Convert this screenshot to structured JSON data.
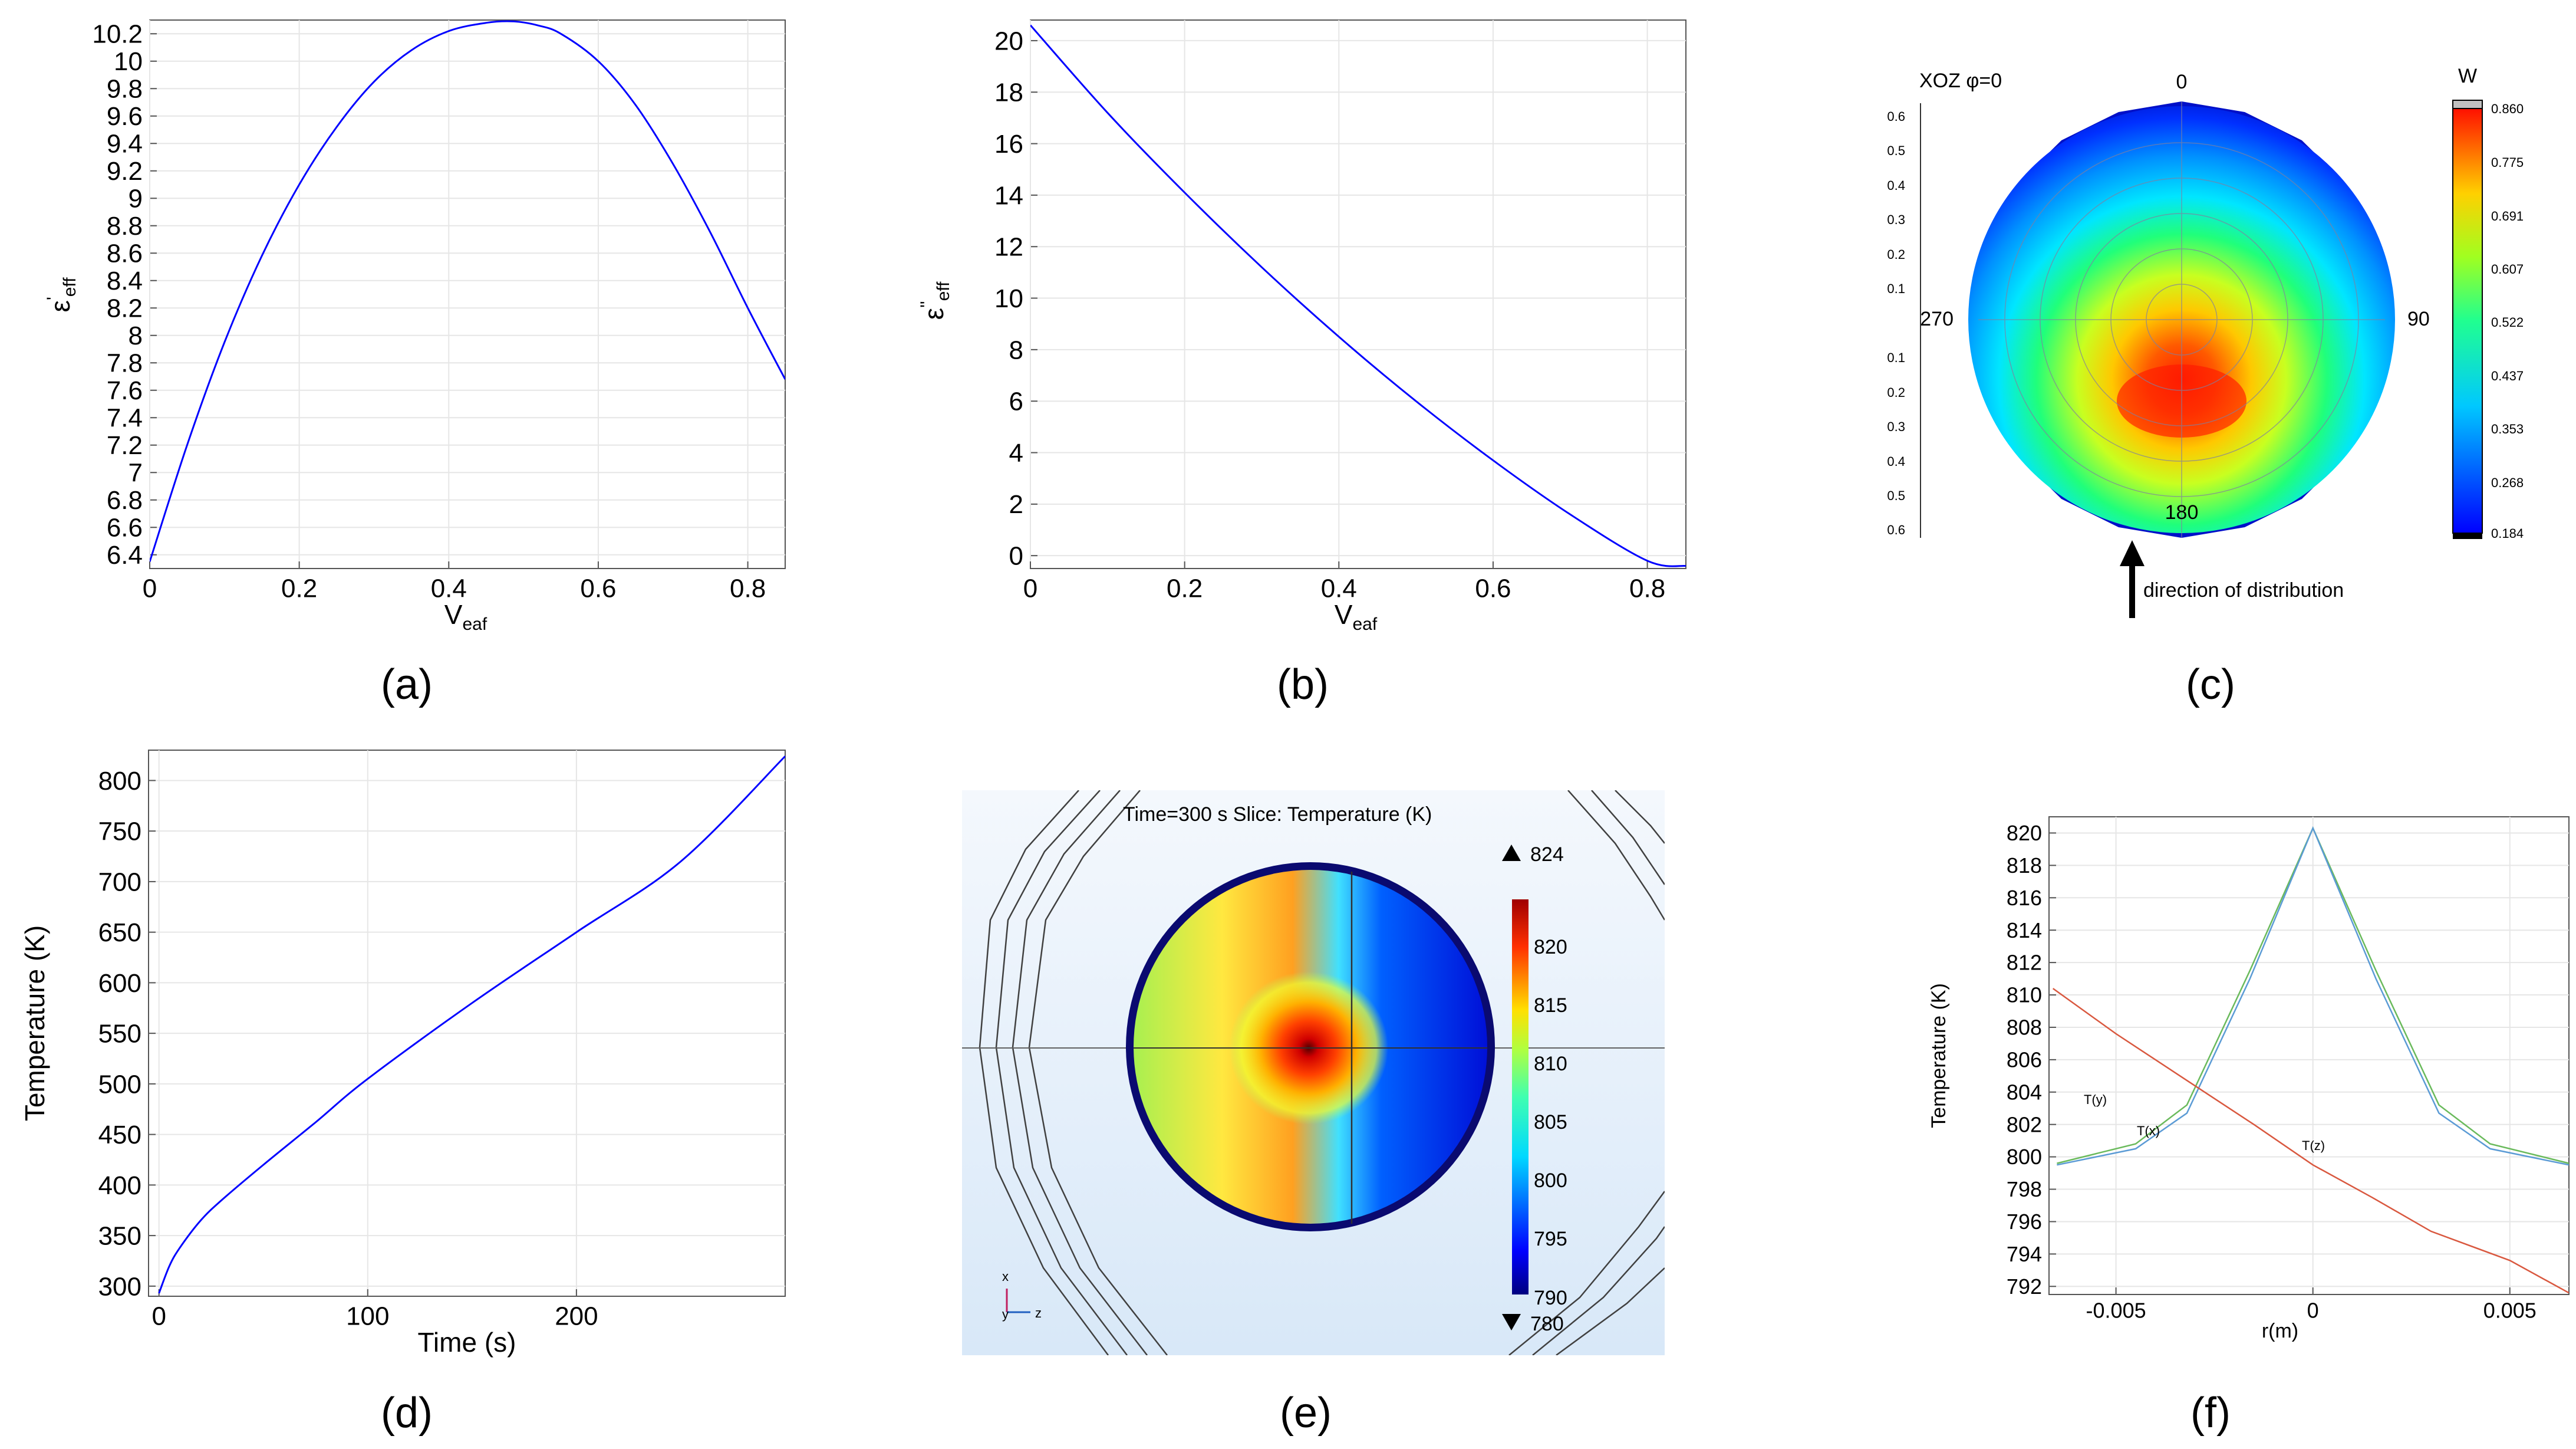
{
  "captions": [
    "(a)",
    "(b)",
    "(c)",
    "(d)",
    "(e)",
    "(f)"
  ],
  "chart_data": [
    {
      "id": "a",
      "type": "line",
      "xlabel": "V",
      "xlabel_sub": "eaf",
      "ylabel": "ε",
      "ylabel_sup": "'",
      "ylabel_sub": "eff",
      "xlim": [
        0,
        0.85
      ],
      "ylim": [
        6.3,
        10.3
      ],
      "xticks": [
        0,
        0.2,
        0.4,
        0.6,
        0.8
      ],
      "xtick_labels": [
        "0",
        "0.2",
        "0.4",
        "0.6",
        "0.8"
      ],
      "yticks": [
        6.4,
        6.6,
        6.8,
        7,
        7.2,
        7.4,
        7.6,
        7.8,
        8,
        8.2,
        8.4,
        8.6,
        8.8,
        9,
        9.2,
        9.4,
        9.6,
        9.8,
        10,
        10.2
      ],
      "ytick_labels": [
        "6.4",
        "6.6",
        "6.8",
        "7",
        "7.2",
        "7.4",
        "7.6",
        "7.8",
        "8",
        "8.2",
        "8.4",
        "8.6",
        "8.8",
        "9",
        "9.2",
        "9.4",
        "9.6",
        "9.8",
        "10",
        "10.2"
      ],
      "series": [
        {
          "name": "ε'eff",
          "color": "#0000ff",
          "x": [
            0,
            0.05,
            0.1,
            0.15,
            0.2,
            0.25,
            0.3,
            0.35,
            0.4,
            0.45,
            0.487,
            0.52,
            0.55,
            0.6,
            0.65,
            0.7,
            0.75,
            0.8,
            0.85
          ],
          "y": [
            6.35,
            7.2,
            7.95,
            8.58,
            9.1,
            9.52,
            9.85,
            10.08,
            10.22,
            10.28,
            10.29,
            10.26,
            10.2,
            10.0,
            9.68,
            9.25,
            8.75,
            8.2,
            7.68
          ]
        }
      ]
    },
    {
      "id": "b",
      "type": "line",
      "xlabel": "V",
      "xlabel_sub": "eaf",
      "ylabel": "ε",
      "ylabel_sup": "''",
      "ylabel_sub": "eff",
      "xlim": [
        0,
        0.85
      ],
      "ylim": [
        -0.5,
        20.8
      ],
      "xticks": [
        0,
        0.2,
        0.4,
        0.6,
        0.8
      ],
      "xtick_labels": [
        "0",
        "0.2",
        "0.4",
        "0.6",
        "0.8"
      ],
      "yticks": [
        0,
        2,
        4,
        6,
        8,
        10,
        12,
        14,
        16,
        18,
        20
      ],
      "ytick_labels": [
        "0",
        "2",
        "4",
        "6",
        "8",
        "10",
        "12",
        "14",
        "16",
        "18",
        "20"
      ],
      "series": [
        {
          "name": "ε''eff",
          "color": "#0000ff",
          "x": [
            0,
            0.1,
            0.2,
            0.3,
            0.4,
            0.5,
            0.6,
            0.7,
            0.8,
            0.85
          ],
          "y": [
            20.6,
            17.2,
            14.1,
            11.2,
            8.5,
            6.0,
            3.7,
            1.6,
            -0.2,
            -0.4
          ]
        }
      ]
    },
    {
      "id": "c",
      "type": "heatmap",
      "plot_label": "XOZ φ=0",
      "angle_labels": [
        "0",
        "90",
        "180",
        "270"
      ],
      "radial_ticks_top": [
        "0.6",
        "0.5",
        "0.4",
        "0.3",
        "0.2",
        "0.1"
      ],
      "radial_ticks_bottom": [
        "0.1",
        "0.2",
        "0.3",
        "0.4",
        "0.5",
        "0.6"
      ],
      "colorbar_title": "W",
      "colorbar_ticks": [
        "0.860",
        "0.775",
        "0.691",
        "0.607",
        "0.522",
        "0.437",
        "0.353",
        "0.268",
        "0.184"
      ],
      "annotation": "direction of distribution"
    },
    {
      "id": "d",
      "type": "line",
      "xlabel": "Time (s)",
      "ylabel": "Temperature (K)",
      "xlim": [
        -5,
        300
      ],
      "ylim": [
        290,
        830
      ],
      "xticks": [
        0,
        100,
        200
      ],
      "xtick_labels": [
        "0",
        "100",
        "200"
      ],
      "yticks": [
        300,
        350,
        400,
        450,
        500,
        550,
        600,
        650,
        700,
        750,
        800
      ],
      "ytick_labels": [
        "300",
        "350",
        "400",
        "450",
        "500",
        "550",
        "600",
        "650",
        "700",
        "750",
        "800"
      ],
      "series": [
        {
          "name": "Temperature",
          "color": "#0000ff",
          "x": [
            0,
            5,
            10,
            20,
            30,
            50,
            75,
            100,
            150,
            200,
            250,
            300
          ],
          "y": [
            293,
            320,
            338,
            365,
            385,
            420,
            462,
            505,
            580,
            650,
            720,
            824
          ]
        }
      ]
    },
    {
      "id": "e",
      "type": "heatmap",
      "title": "Time=300 s   Slice: Temperature (K)",
      "max_label": "824",
      "min_label": "780",
      "colorbar_ticks": [
        "820",
        "815",
        "810",
        "805",
        "800",
        "795",
        "790"
      ],
      "colorbar_range": [
        790,
        823
      ],
      "axis_labels": [
        "x",
        "y",
        "z"
      ]
    },
    {
      "id": "f",
      "type": "line",
      "xlabel": "r(m)",
      "ylabel": "Temperature (K)",
      "xlim": [
        -0.0067,
        0.0065
      ],
      "ylim": [
        791.5,
        821
      ],
      "xticks": [
        -0.005,
        0,
        0.005
      ],
      "xtick_labels": [
        "-0.005",
        "0",
        "0.005"
      ],
      "yticks": [
        792,
        794,
        796,
        798,
        800,
        802,
        804,
        806,
        808,
        810,
        812,
        814,
        816,
        818,
        820
      ],
      "ytick_labels": [
        "792",
        "794",
        "796",
        "798",
        "800",
        "802",
        "804",
        "806",
        "808",
        "810",
        "812",
        "814",
        "816",
        "818",
        "820"
      ],
      "series": [
        {
          "name": "T(y)",
          "color": "#6aba5c",
          "x": [
            -0.0065,
            -0.0045,
            -0.0032,
            -0.0016,
            0,
            0.0016,
            0.0032,
            0.0045,
            0.0065
          ],
          "y": [
            799.6,
            800.8,
            803.2,
            811.5,
            820.3,
            811.5,
            803.2,
            800.8,
            799.6
          ]
        },
        {
          "name": "T(x)",
          "color": "#5b9bd5",
          "x": [
            -0.0065,
            -0.0045,
            -0.0032,
            -0.0016,
            0,
            0.0016,
            0.0032,
            0.0045,
            0.0065
          ],
          "y": [
            799.5,
            800.5,
            802.7,
            811.0,
            820.3,
            811.0,
            802.7,
            800.5,
            799.5
          ]
        },
        {
          "name": "T(z)",
          "color": "#d9583f",
          "x": [
            -0.0066,
            -0.005,
            -0.003,
            -0.0015,
            0,
            0.0015,
            0.003,
            0.005,
            0.0065
          ],
          "y": [
            810.4,
            807.6,
            804.4,
            802.0,
            799.5,
            797.5,
            795.4,
            793.6,
            791.6
          ]
        }
      ],
      "curve_labels": [
        "T(y)",
        "T(x)",
        "T(z)"
      ]
    }
  ]
}
